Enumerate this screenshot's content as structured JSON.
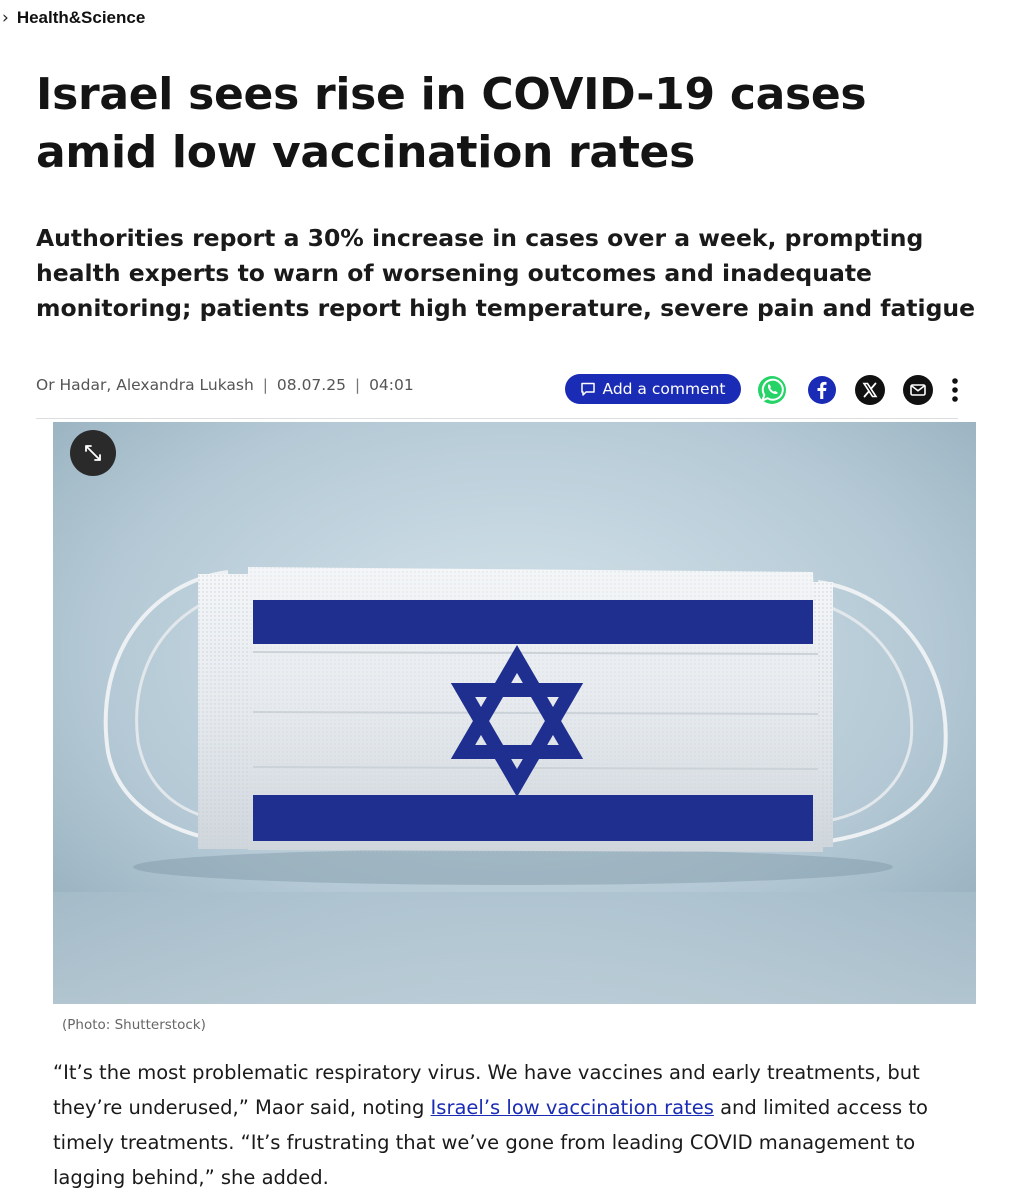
{
  "breadcrumb": {
    "chevron": "›",
    "section": "Health&Science"
  },
  "article": {
    "title": "Israel sees rise in COVID-19 cases amid low vaccination rates",
    "subtitle": "Authorities report a 30% increase in cases over a week, prompting health experts to warn of worsening outcomes and inadequate monitoring; patients report high temperature, severe pain and fatigue",
    "authors": "Or Hadar, Alexandra Lukash",
    "date": "08.07.25",
    "time": "04:01",
    "separator": "|",
    "photo_caption": "(Photo: Shutterstock)",
    "body": {
      "part1": "“It’s the most problematic respiratory virus. We have vaccines and early treatments, but they’re underused,” Maor said, noting ",
      "link_text": "Israel’s low vaccination rates",
      "part2": " and limited access to timely treatments. “It’s frustrating that we’ve gone from leading COVID management to lagging behind,” she added."
    }
  },
  "actions": {
    "comment_label": "Add a comment",
    "comment_icon": "comment-icon",
    "share_icons": [
      "whatsapp-icon",
      "facebook-icon",
      "x-icon",
      "mail-icon"
    ],
    "more_icon": "more-vertical-icon",
    "expand_icon": "expand-icon"
  },
  "colors": {
    "accent": "#1a2bb5",
    "whatsapp": "#25D366",
    "facebook": "#1a2bb5",
    "flag_blue": "#1f2f8f"
  }
}
